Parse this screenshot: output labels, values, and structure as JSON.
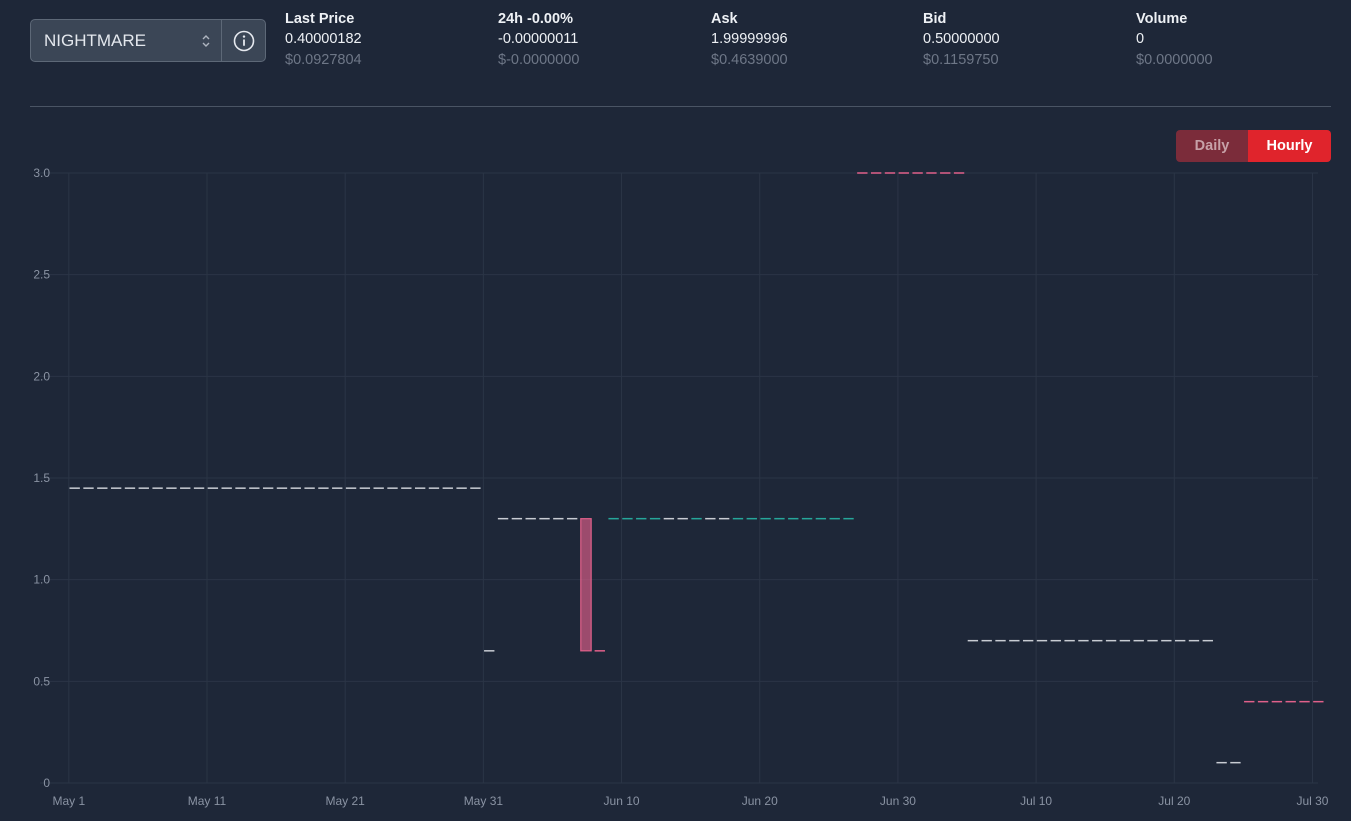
{
  "selector": {
    "value": "NIGHTMARE",
    "arrows_icon": "chevron-up-down-icon",
    "info_icon": "info-circle-icon"
  },
  "stats": [
    {
      "label": "Last Price",
      "value": "0.40000182",
      "usd": "$0.0927804"
    },
    {
      "label": "24h -0.00%",
      "value": "-0.00000011",
      "usd": "$-0.0000000"
    },
    {
      "label": "Ask",
      "value": "1.99999996",
      "usd": "$0.4639000"
    },
    {
      "label": "Bid",
      "value": "0.50000000",
      "usd": "$0.1159750"
    },
    {
      "label": "Volume",
      "value": "0",
      "usd": "$0.0000000"
    }
  ],
  "toggle": {
    "daily": "Daily",
    "hourly": "Hourly",
    "active": "hourly"
  },
  "colors": {
    "background": "#1e2738",
    "neutral": "#c8ccd3",
    "up": "#26a69a",
    "down": "#e0608a",
    "grid": "#2b3546",
    "active_toggle": "#e0242c"
  },
  "chart_data": {
    "type": "candlestick",
    "x_axis": {
      "ticks": [
        "May 1",
        "May 11",
        "May 21",
        "May 31",
        "Jun 10",
        "Jun 20",
        "Jun 30",
        "Jul 10",
        "Jul 20",
        "Jul 30"
      ],
      "range": [
        "Apr 30",
        "Jul 30"
      ]
    },
    "y_axis": {
      "ticks": [
        "3.0",
        "2.5",
        "2.0",
        "1.5",
        "1.0",
        "0.5",
        "0"
      ],
      "range": [
        0,
        3.0
      ]
    },
    "grid": true,
    "segments": [
      {
        "from": "May 1",
        "to": "May 30",
        "value": 1.45,
        "color": "neutral"
      },
      {
        "from": "May 31",
        "to": "May 31",
        "value": 0.65,
        "color": "neutral"
      },
      {
        "from": "Jun 1",
        "to": "Jun 6",
        "value": 1.3,
        "color": "neutral"
      },
      {
        "from": "Jun 7",
        "to": "Jun 7",
        "open": 1.3,
        "close": 0.65,
        "color": "down"
      },
      {
        "from": "Jun 8",
        "to": "Jun 8",
        "value": 0.65,
        "color": "down"
      },
      {
        "from": "Jun 9",
        "to": "Jun 26",
        "value": 1.3,
        "color": "mixed"
      },
      {
        "from": "Jun 27",
        "to": "Jul 4",
        "value": 3.0,
        "color": "down"
      },
      {
        "from": "Jul 5",
        "to": "Jul 22",
        "value": 0.7,
        "color": "neutral"
      },
      {
        "from": "Jul 23",
        "to": "Jul 24",
        "value": 0.1,
        "color": "neutral"
      },
      {
        "from": "Jul 25",
        "to": "Jul 30",
        "value": 0.4,
        "color": "down"
      }
    ]
  }
}
